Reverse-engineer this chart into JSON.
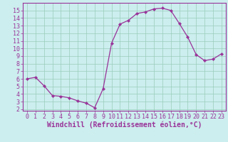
{
  "x": [
    0,
    1,
    2,
    3,
    4,
    5,
    6,
    7,
    8,
    9,
    10,
    11,
    12,
    13,
    14,
    15,
    16,
    17,
    18,
    19,
    20,
    21,
    22,
    23
  ],
  "y": [
    6.0,
    6.2,
    5.1,
    3.8,
    3.7,
    3.5,
    3.1,
    2.8,
    2.2,
    4.7,
    10.7,
    13.2,
    13.7,
    14.6,
    14.8,
    15.2,
    15.3,
    15.0,
    13.3,
    11.5,
    9.2,
    8.4,
    8.6,
    9.3
  ],
  "xlabel": "Windchill (Refroidissement éolien,°C)",
  "xlim_lo": -0.5,
  "xlim_hi": 23.5,
  "ylim_lo": 1.8,
  "ylim_hi": 16.0,
  "yticks": [
    2,
    3,
    4,
    5,
    6,
    7,
    8,
    9,
    10,
    11,
    12,
    13,
    14,
    15
  ],
  "xticks": [
    0,
    1,
    2,
    3,
    4,
    5,
    6,
    7,
    8,
    9,
    10,
    11,
    12,
    13,
    14,
    15,
    16,
    17,
    18,
    19,
    20,
    21,
    22,
    23
  ],
  "line_color": "#993399",
  "bg_color": "#cceeee",
  "grid_color": "#99ccbb",
  "tick_color": "#993399",
  "xlabel_color": "#993399",
  "xlabel_fontsize": 7,
  "tick_fontsize": 6,
  "spine_color": "#993399"
}
